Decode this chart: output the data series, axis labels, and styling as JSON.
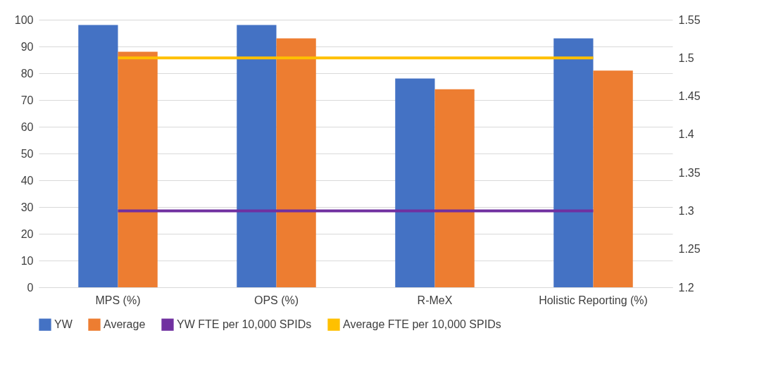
{
  "chart_data": {
    "type": "bar",
    "categories": [
      "MPS (%)",
      "OPS (%)",
      "R-MeX",
      "Holistic Reporting (%)"
    ],
    "series": [
      {
        "name": "YW",
        "color": "#4472c4",
        "values": [
          98,
          98,
          78,
          93
        ]
      },
      {
        "name": "Average",
        "color": "#ed7d31",
        "values": [
          88,
          93,
          74,
          81
        ]
      },
      {
        "name": "YW FTE per 10,000 SPIDs",
        "color": "#7030a0",
        "type": "line",
        "axis": "y2",
        "values": [
          1.3,
          1.3,
          1.3,
          1.3
        ]
      },
      {
        "name": "Average FTE per 10,000 SPIDs",
        "color": "#ffc000",
        "type": "line",
        "axis": "y2",
        "values": [
          1.5,
          1.5,
          1.5,
          1.5
        ]
      }
    ],
    "ylim": [
      0,
      100
    ],
    "yticks": [
      0,
      10,
      20,
      30,
      40,
      50,
      60,
      70,
      80,
      90,
      100
    ],
    "y2lim": [
      1.2,
      1.55
    ],
    "y2ticks": [
      1.2,
      1.25,
      1.3,
      1.35,
      1.4,
      1.45,
      1.5,
      1.55
    ],
    "grid": "y",
    "legend": "bottom"
  }
}
